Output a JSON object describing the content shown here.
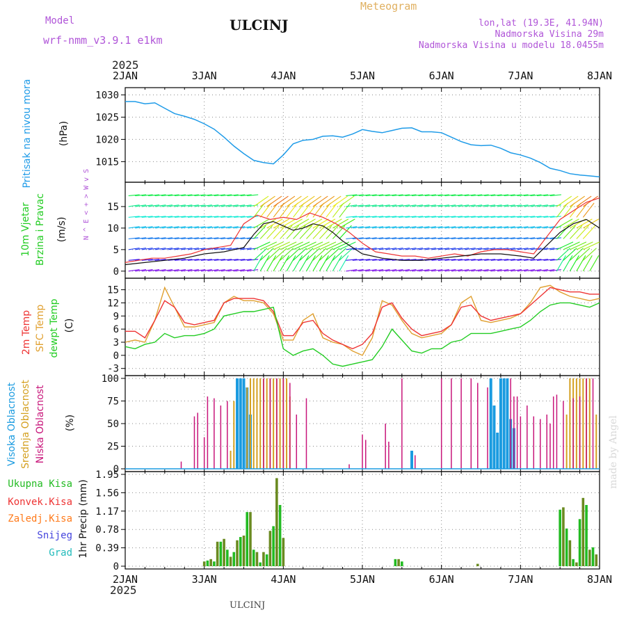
{
  "header": {
    "model_label": "Model",
    "model_name": "wrf-nmm_v3.9.1 e1km",
    "station": "ULCINJ",
    "product": "Meteogram",
    "lonlat": "lon,lat (19.3E, 41.94N)",
    "elevation": "Nadmorska Visina 29m",
    "model_elevation": "Nadmorska Visina u modelu 18.0455m",
    "footer_station": "ULCINJ",
    "credit": "made by Angel"
  },
  "time_axis": {
    "year_label": "2025",
    "days": [
      "2JAN",
      "3JAN",
      "4JAN",
      "5JAN",
      "6JAN",
      "7JAN",
      "8JAN"
    ],
    "hours_total": 144
  },
  "colors": {
    "pressure": "#1e9be8",
    "temp2m": "#ee3333",
    "sfc_temp": "#e0a030",
    "dewpt": "#22cc22",
    "high_cloud": "#1a9be0",
    "mid_cloud": "#d4a020",
    "low_cloud": "#c8157a",
    "total_precip": "#22bb22",
    "convective": "#ee3333",
    "frozen": "#ff7a1a",
    "snow": "#4444dd",
    "graupel": "#22bbbb",
    "wind_speed_line": "#111111",
    "gust": "#ee3333",
    "grid": "#888888"
  },
  "chart_data": [
    {
      "type": "line",
      "title": "",
      "ylabel_lines": [
        "Pritisak na nivou mora",
        "(hPa)"
      ],
      "ylim": [
        1011,
        1031
      ],
      "yticks": [
        1015,
        1020,
        1025,
        1030
      ],
      "grid": true,
      "series": [
        {
          "name": "Pritisak na nivou mora",
          "x": [
            0,
            3,
            6,
            9,
            12,
            15,
            18,
            21,
            24,
            27,
            30,
            33,
            36,
            39,
            42,
            45,
            48,
            51,
            54,
            57,
            60,
            63,
            66,
            69,
            72,
            75,
            78,
            81,
            84,
            87,
            90,
            93,
            96,
            99,
            102,
            105,
            108,
            111,
            114,
            117,
            120,
            123,
            126,
            129,
            132,
            135,
            138,
            141,
            144
          ],
          "values": [
            1028.5,
            1028.5,
            1028.0,
            1028.2,
            1027.0,
            1025.8,
            1025.2,
            1024.5,
            1023.5,
            1022.3,
            1020.5,
            1018.5,
            1016.8,
            1015.3,
            1014.8,
            1014.5,
            1016.5,
            1019.0,
            1019.8,
            1020.0,
            1020.7,
            1020.8,
            1020.5,
            1021.2,
            1022.2,
            1021.8,
            1021.5,
            1022.0,
            1022.5,
            1022.6,
            1021.7,
            1021.7,
            1021.5,
            1020.5,
            1019.5,
            1018.8,
            1018.6,
            1018.7,
            1018.0,
            1017.0,
            1016.5,
            1015.8,
            1014.8,
            1013.5,
            1013.0,
            1012.3,
            1012.0,
            1011.8,
            1011.6
          ]
        }
      ]
    },
    {
      "type": "line",
      "title": "",
      "ylabel_lines": [
        "10m Vjetar",
        "Brzina i Pravac",
        "(m/s)"
      ],
      "direction_key": "N ^ E < + > W v S",
      "ylim": [
        -1,
        20
      ],
      "yticks": [
        0,
        5,
        10,
        15
      ],
      "grid": true,
      "series": [
        {
          "name": "Brzina",
          "x": [
            0,
            6,
            12,
            18,
            24,
            30,
            33,
            36,
            39,
            42,
            45,
            48,
            51,
            54,
            57,
            60,
            63,
            66,
            69,
            72,
            78,
            84,
            90,
            96,
            102,
            108,
            114,
            120,
            124,
            128,
            132,
            136,
            140,
            144
          ],
          "values": [
            1.5,
            2.0,
            2.5,
            3.0,
            4.0,
            4.5,
            5.0,
            5.5,
            8.5,
            11.0,
            11.5,
            10.5,
            9.5,
            10.0,
            11.0,
            10.5,
            9.0,
            7.0,
            5.5,
            4.0,
            3.0,
            2.5,
            2.5,
            3.0,
            3.5,
            4.0,
            4.0,
            3.5,
            3.0,
            6.0,
            9.0,
            11.0,
            12.0,
            10.0
          ]
        },
        {
          "name": "Udari",
          "x": [
            0,
            4,
            8,
            12,
            16,
            20,
            24,
            28,
            32,
            36,
            40,
            44,
            48,
            52,
            56,
            60,
            64,
            68,
            72,
            76,
            80,
            84,
            88,
            92,
            96,
            100,
            104,
            108,
            112,
            116,
            120,
            124,
            128,
            132,
            136,
            140,
            144
          ],
          "values": [
            2.0,
            2.5,
            3.0,
            3.0,
            3.5,
            4.0,
            5.0,
            5.5,
            6.0,
            11.0,
            13.0,
            12.0,
            12.5,
            12.0,
            13.5,
            12.5,
            11.0,
            9.0,
            6.5,
            4.5,
            4.0,
            3.5,
            3.5,
            3.0,
            3.5,
            4.0,
            3.5,
            4.5,
            5.0,
            5.0,
            4.5,
            4.0,
            8.0,
            12.0,
            14.0,
            16.0,
            17.0
          ]
        }
      ]
    },
    {
      "type": "line",
      "title": "",
      "ylabel_lines": [
        "2m Temp",
        "SFC Temp",
        "dewpt Temp",
        "(C)"
      ],
      "ylim": [
        -4,
        17
      ],
      "yticks": [
        -3,
        0,
        3,
        6,
        9,
        12,
        15
      ],
      "grid": true,
      "series": [
        {
          "name": "2m Temp",
          "x": [
            0,
            3,
            6,
            9,
            12,
            15,
            18,
            21,
            24,
            27,
            30,
            33,
            36,
            39,
            42,
            45,
            48,
            51,
            54,
            57,
            60,
            63,
            66,
            69,
            72,
            75,
            78,
            81,
            84,
            87,
            90,
            93,
            96,
            99,
            102,
            105,
            108,
            111,
            114,
            117,
            120,
            123,
            126,
            129,
            132,
            135,
            138,
            141,
            144
          ],
          "values": [
            5.5,
            5.5,
            4.0,
            8.0,
            12.5,
            11.0,
            7.5,
            7.0,
            7.5,
            8.0,
            12.0,
            13.0,
            13.0,
            13.0,
            12.5,
            10.0,
            4.5,
            4.5,
            7.5,
            8.0,
            5.0,
            3.5,
            2.5,
            1.5,
            2.5,
            5.0,
            11.0,
            12.0,
            8.5,
            6.0,
            4.5,
            5.0,
            5.5,
            7.0,
            11.0,
            11.5,
            9.0,
            8.0,
            8.5,
            9.0,
            9.5,
            11.5,
            13.5,
            15.5,
            15.0,
            14.5,
            14.5,
            14.0,
            14.0
          ]
        },
        {
          "name": "SFC Temp",
          "x": [
            0,
            3,
            6,
            9,
            12,
            15,
            18,
            21,
            24,
            27,
            30,
            33,
            36,
            39,
            42,
            45,
            48,
            51,
            54,
            57,
            60,
            63,
            66,
            69,
            72,
            75,
            78,
            81,
            84,
            87,
            90,
            93,
            96,
            99,
            102,
            105,
            108,
            111,
            114,
            117,
            120,
            123,
            126,
            129,
            132,
            135,
            138,
            141,
            144
          ],
          "values": [
            3.0,
            3.5,
            3.0,
            8.0,
            15.5,
            11.0,
            6.5,
            6.5,
            7.0,
            7.5,
            12.0,
            13.5,
            12.5,
            12.5,
            12.0,
            9.5,
            3.5,
            3.5,
            8.0,
            9.5,
            4.0,
            3.0,
            2.5,
            1.0,
            0.0,
            4.0,
            12.5,
            11.5,
            8.0,
            5.0,
            4.0,
            4.5,
            5.0,
            7.0,
            12.0,
            13.5,
            8.0,
            7.5,
            8.0,
            8.5,
            9.5,
            12.0,
            15.5,
            16.0,
            14.5,
            13.5,
            13.0,
            12.5,
            13.0
          ]
        },
        {
          "name": "dewpt Temp",
          "x": [
            0,
            3,
            6,
            9,
            12,
            15,
            18,
            21,
            24,
            27,
            30,
            33,
            36,
            39,
            42,
            45,
            48,
            51,
            54,
            57,
            60,
            63,
            66,
            69,
            72,
            75,
            78,
            81,
            84,
            87,
            90,
            93,
            96,
            99,
            102,
            105,
            108,
            111,
            114,
            117,
            120,
            123,
            126,
            129,
            132,
            135,
            138,
            141,
            144
          ],
          "values": [
            2.0,
            1.5,
            2.5,
            3.0,
            5.0,
            4.0,
            4.5,
            4.5,
            5.0,
            6.0,
            9.0,
            9.5,
            10.0,
            10.0,
            10.5,
            11.0,
            1.5,
            0.0,
            1.0,
            1.5,
            0.0,
            -2.0,
            -2.5,
            -2.0,
            -1.5,
            -1.0,
            2.0,
            6.0,
            3.5,
            1.0,
            0.5,
            1.5,
            1.5,
            3.0,
            3.5,
            5.0,
            5.0,
            5.0,
            5.5,
            6.0,
            6.5,
            8.0,
            10.0,
            11.5,
            12.0,
            12.0,
            11.5,
            11.0,
            12.0
          ]
        }
      ]
    },
    {
      "type": "bar",
      "title": "",
      "ylabel_lines": [
        "Visoka Oblacnost",
        "Srednja Oblacnost",
        "Niska Oblacnost",
        "(%)"
      ],
      "ylim": [
        0,
        100
      ],
      "yticks": [
        0,
        25,
        50,
        75,
        100
      ],
      "grid": true,
      "series": [
        {
          "name": "Visoka Oblacnost",
          "x": [
            34,
            35,
            36,
            37,
            38,
            87,
            111,
            112,
            113,
            114,
            115,
            116,
            117,
            118
          ],
          "values": [
            100,
            100,
            100,
            90,
            60,
            20,
            100,
            70,
            40,
            100,
            100,
            100,
            55,
            45
          ]
        },
        {
          "name": "Srednja Oblacnost",
          "x": [
            32,
            33,
            37,
            38,
            39,
            40,
            41,
            42,
            43,
            44,
            45,
            46,
            47,
            48,
            49,
            50,
            134,
            135,
            136,
            137,
            138,
            139,
            140,
            141,
            143
          ],
          "values": [
            20,
            75,
            90,
            100,
            100,
            100,
            100,
            100,
            100,
            100,
            100,
            100,
            100,
            100,
            100,
            80,
            60,
            100,
            100,
            100,
            100,
            100,
            100,
            100,
            60
          ]
        },
        {
          "name": "Niska Oblacnost",
          "x": [
            17,
            21,
            22,
            24,
            25,
            27,
            29,
            31,
            42,
            44,
            46,
            48,
            50,
            52,
            55,
            68,
            72,
            73,
            79,
            80,
            84,
            88,
            96,
            99,
            102,
            105,
            107,
            110,
            117,
            118,
            119,
            120,
            122,
            124,
            126,
            128,
            129,
            130,
            131,
            133,
            136,
            138,
            140,
            142
          ],
          "values": [
            8,
            58,
            62,
            35,
            80,
            78,
            70,
            75,
            100,
            100,
            100,
            100,
            95,
            60,
            78,
            5,
            38,
            32,
            50,
            30,
            100,
            15,
            100,
            100,
            100,
            100,
            95,
            90,
            100,
            80,
            80,
            58,
            70,
            58,
            55,
            60,
            50,
            80,
            82,
            75,
            78,
            80,
            100,
            100
          ]
        }
      ]
    },
    {
      "type": "bar",
      "title": "",
      "ylabel_lines": [
        "1hr Precip (mm)"
      ],
      "ylim": [
        0,
        1.95
      ],
      "yticks": [
        0,
        0.39,
        0.78,
        1.17,
        1.56,
        1.95
      ],
      "ytick_labels": [
        "0",
        "0.39",
        "0.78",
        "1.17",
        "1.56",
        "1.95"
      ],
      "grid": true,
      "legend_labels": [
        "Ukupna Kisa",
        "Konvek.Kisa",
        "Zaledj.Kisa",
        "Snijeg",
        "Grad"
      ],
      "series": [
        {
          "name": "Ukupna Kisa",
          "x": [
            24,
            25,
            26,
            27,
            28,
            29,
            30,
            31,
            32,
            33,
            34,
            35,
            36,
            37,
            38,
            39,
            40,
            41,
            42,
            43,
            44,
            45,
            46,
            47,
            48,
            82,
            83,
            84,
            107,
            132,
            133,
            134,
            135,
            136,
            137,
            138,
            139,
            140,
            141,
            142,
            143
          ],
          "values": [
            0.1,
            0.12,
            0.15,
            0.1,
            0.52,
            0.52,
            0.58,
            0.35,
            0.2,
            0.3,
            0.55,
            0.62,
            0.65,
            1.15,
            1.15,
            0.35,
            0.3,
            0.08,
            0.3,
            0.25,
            0.75,
            0.85,
            1.87,
            1.3,
            0.6,
            0.15,
            0.15,
            0.1,
            0.05,
            1.2,
            1.25,
            0.8,
            0.55,
            0.15,
            0.08,
            1.0,
            1.45,
            1.3,
            0.35,
            0.4,
            0.25
          ]
        }
      ]
    }
  ]
}
